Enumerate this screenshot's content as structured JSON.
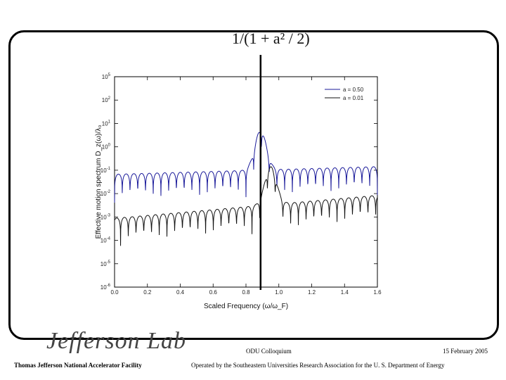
{
  "slide": {
    "formula": "1/(1 + a² / 2)",
    "footer_left": "Thomas Jefferson National Accelerator Facility",
    "footer_center_top": "ODU Colloquium",
    "footer_center_bottom": "Operated by the Southeastern Universities Research Association for the U. S. Department of Energy",
    "footer_right": "15 February 2005",
    "logo_text": "Jefferson Lab"
  },
  "chart_data": {
    "type": "line",
    "title": "",
    "xlabel": "Scaled Frequency (ω/ω_F)",
    "ylabel": "Effective motion spectrum D_z(ω)/λ₀",
    "xlim": [
      0.0,
      1.6
    ],
    "ylim_log10": [
      -6,
      5
    ],
    "yscale": "log",
    "x_ticks": [
      "0.0",
      "0.2",
      "0.4",
      "0.6",
      "0.8",
      "1.0",
      "1.2",
      "1.4",
      "1.6"
    ],
    "y_ticks": [
      "10^5",
      "10^2",
      "10^1",
      "10^0",
      "10^-1",
      "10^-2",
      "10^-3",
      "10^-4",
      "10^-5",
      "10^-6"
    ],
    "vertical_marker_x": 0.889,
    "legend_position": "top-right",
    "series": [
      {
        "name": "a = 0.50",
        "color": "#1a1a9a",
        "peak_x": 0.889,
        "peak_log10": 2.2,
        "base_log10_at_0": -0.1,
        "base_log10_at_1.6": 0.3,
        "oscillations": 34
      },
      {
        "name": "a = 0.01",
        "color": "#111111",
        "peak_x": 0.95,
        "peak_log10": 0.3,
        "base_log10_at_0": -2.4,
        "base_log10_at_1.6": -1.2,
        "oscillations": 34
      }
    ]
  }
}
